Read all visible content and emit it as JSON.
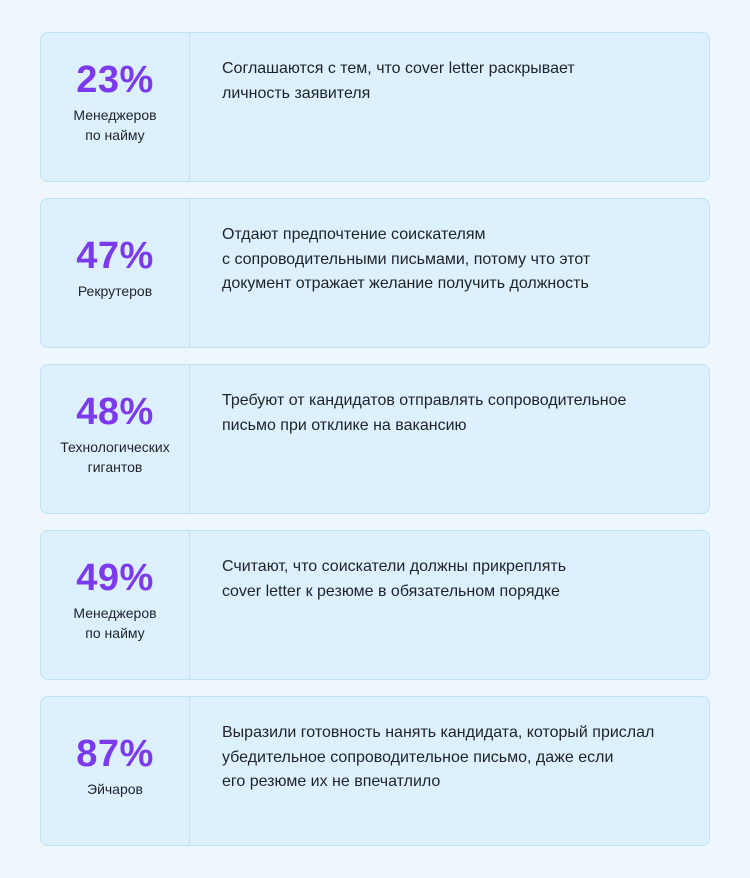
{
  "colors": {
    "background": "#eef6fe",
    "card_background": "#dcf0fd",
    "card_border": "#bde2f6",
    "accent": "#7c3aed",
    "text": "#1f2328"
  },
  "stats": [
    {
      "percent": "23%",
      "audience": "Менеджеров\nпо найму",
      "description": "Соглашаются с тем, что cover letter раскрывает\nличность заявителя"
    },
    {
      "percent": "47%",
      "audience": "Рекрутеров",
      "description": "Отдают предпочтение соискателям\nс сопроводительными письмами, потому что этот\nдокумент отражает желание получить должность"
    },
    {
      "percent": "48%",
      "audience": "Технологических\nгигантов",
      "description": "Требуют от кандидатов отправлять сопроводительное\nписьмо при отклике на вакансию"
    },
    {
      "percent": "49%",
      "audience": "Менеджеров\nпо найму",
      "description": "Считают, что соискатели должны прикреплять\ncover letter к резюме в обязательном порядке"
    },
    {
      "percent": "87%",
      "audience": "Эйчаров",
      "description": "Выразили готовность нанять кандидата, который прислал\nубедительное сопроводительное письмо, даже если\nего резюме их не впечатлило"
    }
  ]
}
